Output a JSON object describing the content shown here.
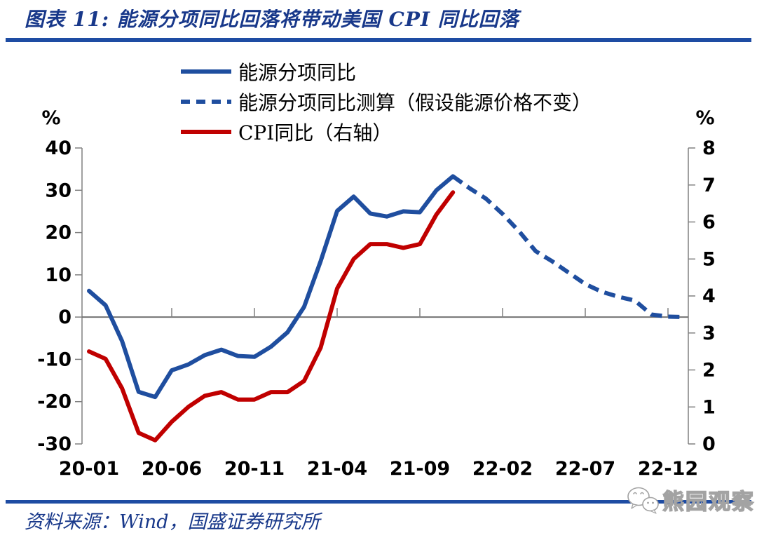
{
  "title": "图表 11: 能源分项同比回落将带动美国 CPI 同比回落",
  "legend": [
    {
      "label": "能源分项同比",
      "color": "#1F4E9F",
      "style": "solid"
    },
    {
      "label": "能源分项同比测算（假设能源价格不变）",
      "color": "#1F4E9F",
      "style": "dashed"
    },
    {
      "label": "CPI同比（右轴）",
      "color": "#C00000",
      "style": "solid"
    }
  ],
  "footer": {
    "source_label": "资料来源：Wind，国盛证券研究所"
  },
  "watermark": {
    "text": "熊园观察"
  },
  "colors": {
    "accent_blue": "#1F4E9F",
    "accent_red": "#C00000",
    "title_navy": "#18388A",
    "rule_blue": "#1E4CA3",
    "axis_gray": "#808080",
    "zero_line_gray": "#737373",
    "watermark_gray": "#A3A3A3"
  },
  "chart_data": {
    "type": "line",
    "title": "能源分项同比回落将带动美国CPI同比回落",
    "left_axis_unit": "%",
    "right_axis_unit": "%",
    "left_ylim": [
      -30,
      40
    ],
    "right_ylim": [
      0,
      8
    ],
    "left_yticks": [
      40,
      30,
      20,
      10,
      0,
      -10,
      -20,
      -30
    ],
    "right_yticks": [
      8,
      7,
      6,
      5,
      4,
      3,
      2,
      1,
      0
    ],
    "n_months": 37,
    "x_start": "20-01",
    "x_tick_labels": [
      "20-01",
      "20-06",
      "20-11",
      "21-04",
      "21-09",
      "22-02",
      "22-07",
      "22-12"
    ],
    "x_tick_month_indices": [
      0,
      5,
      10,
      15,
      20,
      25,
      30,
      35
    ],
    "grid": false,
    "legend_position": "top-left",
    "series": [
      {
        "name": "能源分项同比",
        "axis": "left",
        "style": "solid",
        "color": "#1F4E9F",
        "start_month": "20-01",
        "start_month_index": 0,
        "values": [
          6.2,
          2.8,
          -5.7,
          -17.7,
          -18.9,
          -12.6,
          -11.2,
          -9.0,
          -7.7,
          -9.2,
          -9.4,
          -7.0,
          -3.6,
          2.4,
          13.2,
          25.1,
          28.5,
          24.5,
          23.8,
          25.0,
          24.8,
          30.0,
          33.3
        ]
      },
      {
        "name": "能源分项同比测算（假设能源价格不变）",
        "axis": "left",
        "style": "dashed",
        "color": "#1F4E9F",
        "start_month": "21-11",
        "start_month_index": 22,
        "values": [
          33.3,
          30.5,
          28.0,
          24.4,
          20.3,
          15.6,
          13.2,
          10.5,
          7.8,
          6.0,
          4.8,
          3.9,
          0.6,
          0.1,
          0.0
        ]
      },
      {
        "name": "CPI同比（右轴）",
        "axis": "right",
        "style": "solid",
        "color": "#C00000",
        "start_month": "20-01",
        "start_month_index": 0,
        "values": [
          2.5,
          2.3,
          1.5,
          0.3,
          0.1,
          0.6,
          1.0,
          1.3,
          1.4,
          1.2,
          1.2,
          1.4,
          1.4,
          1.7,
          2.6,
          4.2,
          5.0,
          5.4,
          5.4,
          5.3,
          5.4,
          6.2,
          6.8
        ]
      }
    ]
  }
}
